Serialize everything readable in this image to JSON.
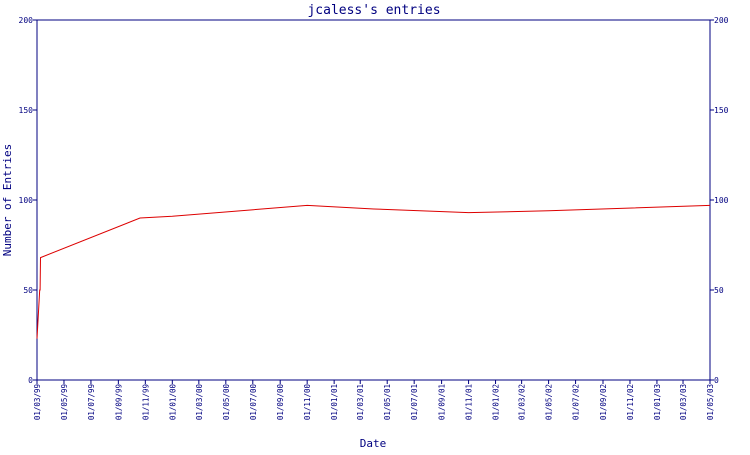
{
  "chart_data": {
    "type": "line",
    "title": "jcaless's entries",
    "xlabel": "Date",
    "ylabel": "Number of Entries",
    "xlim": [
      "1999-03-01",
      "2003-05-01"
    ],
    "ylim": [
      0,
      200
    ],
    "y_ticks": [
      0,
      50,
      100,
      150,
      200
    ],
    "y_tick_labels": [
      "0",
      "50",
      "100",
      "150",
      "200"
    ],
    "x_ticks": [
      "1999-03-01",
      "1999-05-01",
      "1999-07-01",
      "1999-09-01",
      "1999-11-01",
      "2000-01-01",
      "2000-03-01",
      "2000-05-01",
      "2000-07-01",
      "2000-09-01",
      "2000-11-01",
      "2001-01-01",
      "2001-03-01",
      "2001-05-01",
      "2001-07-01",
      "2001-09-01",
      "2001-11-01",
      "2002-01-01",
      "2002-03-01",
      "2002-05-01",
      "2002-07-01",
      "2002-09-01",
      "2002-11-01",
      "2003-01-01",
      "2003-03-01",
      "2003-05-01"
    ],
    "x_tick_labels": [
      "01/03/99",
      "01/05/99",
      "01/07/99",
      "01/09/99",
      "01/11/99",
      "01/01/00",
      "01/03/00",
      "01/05/00",
      "01/07/00",
      "01/09/00",
      "01/11/00",
      "01/01/01",
      "01/03/01",
      "01/05/01",
      "01/07/01",
      "01/09/01",
      "01/11/01",
      "01/01/02",
      "01/03/02",
      "01/05/02",
      "01/07/02",
      "01/09/02",
      "01/11/02",
      "01/01/03",
      "01/03/03",
      "01/05/03"
    ],
    "series": [
      {
        "color": "#dd0000",
        "x": [
          "1999-03-01",
          "1999-03-07",
          "1999-03-08",
          "1999-03-09",
          "1999-10-20",
          "2000-01-01",
          "2000-11-01",
          "2001-04-01",
          "2001-11-01",
          "2002-05-01",
          "2003-05-01"
        ],
        "y": [
          23,
          50,
          50,
          68,
          90,
          91,
          97,
          95,
          93,
          94,
          97
        ]
      }
    ],
    "grid": false,
    "right_axis_mirror": true
  },
  "colors": {
    "axis": "#000080",
    "line": "#dd0000",
    "background": "#ffffff"
  }
}
